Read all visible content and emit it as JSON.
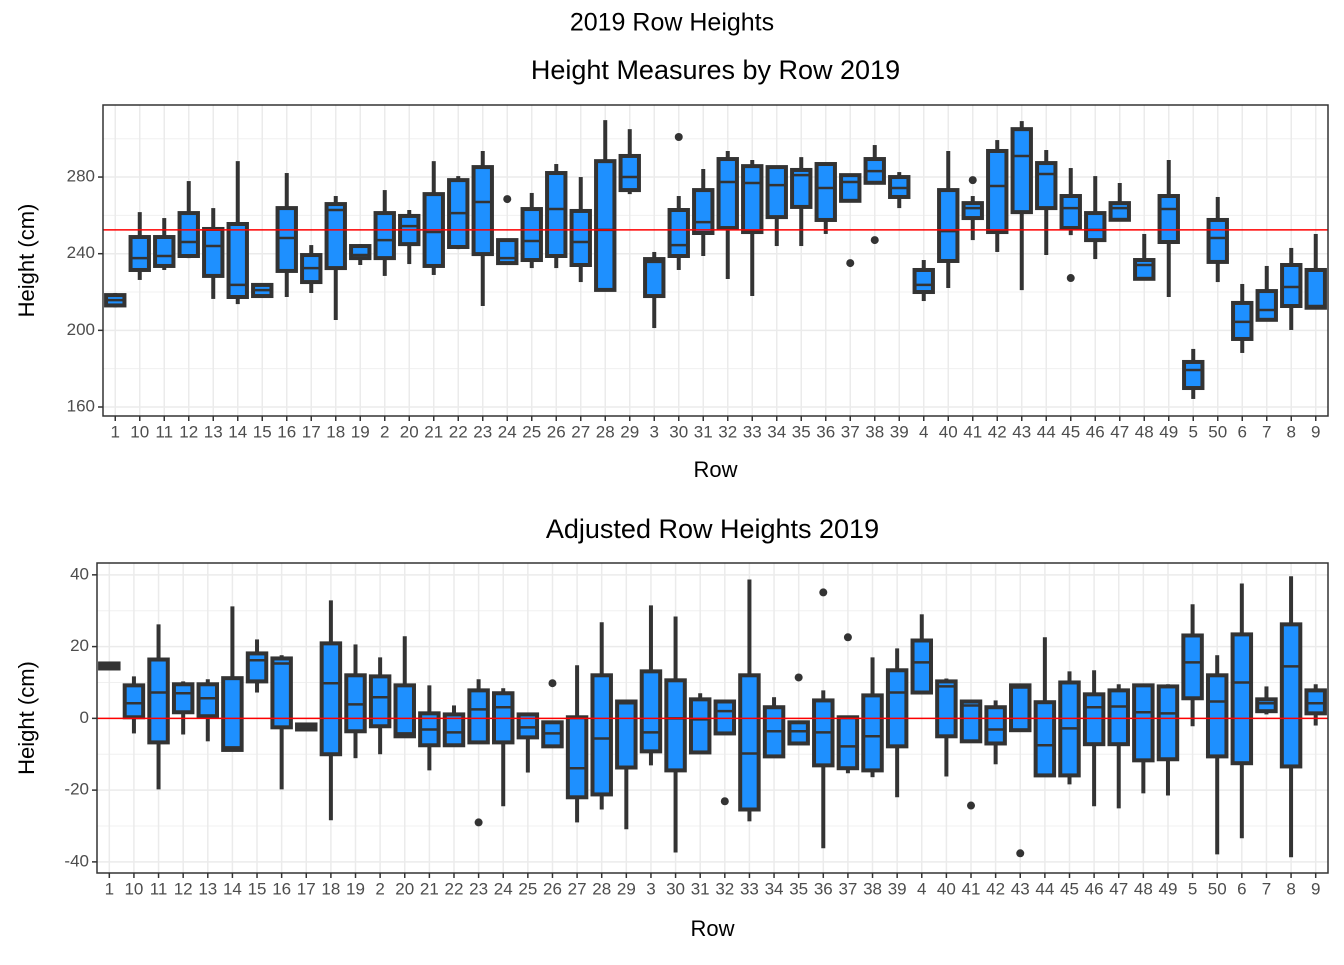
{
  "title": "2019 Row Heights",
  "chart_data": [
    {
      "type": "box",
      "title": "Height Measures by Row 2019",
      "xlabel": "Row",
      "ylabel": "Height (cm)",
      "categories": [
        "1",
        "10",
        "11",
        "12",
        "13",
        "14",
        "15",
        "16",
        "17",
        "18",
        "19",
        "2",
        "20",
        "21",
        "22",
        "23",
        "24",
        "25",
        "26",
        "27",
        "28",
        "29",
        "3",
        "30",
        "31",
        "32",
        "33",
        "34",
        "35",
        "36",
        "37",
        "38",
        "39",
        "4",
        "40",
        "41",
        "42",
        "43",
        "44",
        "45",
        "46",
        "47",
        "48",
        "49",
        "5",
        "50",
        "6",
        "7",
        "8",
        "9"
      ],
      "color": "#1e90ff",
      "line_color": "#333333",
      "boxes": [
        [
          212,
          213,
          215.8,
          218.4,
          219.5
        ],
        [
          226.3,
          231.5,
          237.7,
          248.7,
          261.7
        ],
        [
          231.5,
          233.6,
          238.8,
          248.7,
          258.6
        ],
        [
          237.7,
          238.8,
          246.1,
          261.2,
          277.9
        ],
        [
          216.4,
          228.4,
          244,
          252.9,
          263.8
        ],
        [
          213.7,
          217.4,
          223.7,
          255.5,
          288.3
        ],
        [
          217.4,
          217.9,
          221,
          223.7,
          224.2
        ],
        [
          217.4,
          231,
          248.2,
          263.8,
          282.1
        ],
        [
          219.5,
          225.2,
          232.5,
          239.3,
          244.5
        ],
        [
          205.4,
          232.5,
          262.8,
          265.9,
          270.1
        ],
        [
          234.1,
          237.7,
          239.3,
          244,
          245
        ],
        [
          228.4,
          237.7,
          247.1,
          261.2,
          273.2
        ],
        [
          234.6,
          245,
          254.4,
          259.7,
          262.8
        ],
        [
          228.9,
          233.6,
          251.3,
          271.1,
          288.3
        ],
        [
          242.4,
          243.5,
          261.2,
          278.4,
          280.5
        ],
        [
          212.7,
          239.8,
          267,
          285.2,
          293.6
        ],
        [
          235,
          235.1,
          237.7,
          247.1,
          247.2
        ],
        [
          232.5,
          236.7,
          246.6,
          263.3,
          271.7
        ],
        [
          232.5,
          238.8,
          263.3,
          282.1,
          286.8
        ],
        [
          225.2,
          234.1,
          246.1,
          262.3,
          280
        ],
        [
          221,
          221.1,
          252.4,
          288.3,
          309.7
        ],
        [
          271.1,
          273.2,
          280,
          291,
          305
        ],
        [
          201.2,
          217.9,
          235.7,
          237.2,
          240.9
        ],
        [
          231.5,
          238.8,
          244.5,
          262.8,
          270.1
        ],
        [
          238.8,
          250.8,
          256.5,
          273.2,
          284.2
        ],
        [
          226.8,
          253.4,
          277.4,
          289.4,
          293.6
        ],
        [
          217.9,
          251.3,
          276.9,
          285.7,
          288.9
        ],
        [
          244,
          259.1,
          275.8,
          285.2,
          285.7
        ],
        [
          244,
          264.4,
          281,
          283.7,
          290.4
        ],
        [
          250.3,
          257.6,
          274.3,
          286.8,
          287
        ],
        [
          267.5,
          267.6,
          277.4,
          281,
          281.1
        ],
        [
          276.9,
          277,
          283.1,
          289.4,
          296.7
        ],
        [
          263.8,
          269.6,
          274.3,
          280,
          282.6
        ],
        [
          215.3,
          220,
          223.7,
          231.5,
          236.7
        ],
        [
          222.1,
          236.2,
          251.8,
          273.2,
          293.6
        ],
        [
          247.1,
          258.6,
          263.8,
          266.4,
          270.1
        ],
        [
          240.9,
          251.3,
          275.3,
          293.6,
          299.3
        ],
        [
          221,
          261.7,
          291,
          305,
          309.2
        ],
        [
          239.3,
          263.8,
          281.6,
          287.3,
          294.1
        ],
        [
          249.7,
          253.4,
          263.8,
          270.1,
          284.7
        ],
        [
          237.2,
          247.1,
          252.4,
          261.2,
          280.5
        ],
        [
          257.6,
          257.7,
          263.8,
          266.4,
          276.9
        ],
        [
          226.8,
          226.9,
          234.1,
          236.7,
          250.3
        ],
        [
          217.4,
          246.1,
          263.3,
          270.1,
          288.9
        ],
        [
          164.2,
          169.9,
          179.3,
          183.5,
          190.3
        ],
        [
          225.2,
          235.7,
          248.2,
          257.6,
          269.6
        ],
        [
          188.2,
          195.5,
          204.4,
          214.3,
          224.2
        ],
        [
          205.4,
          205.5,
          210.6,
          220.5,
          233.6
        ],
        [
          200.2,
          212.7,
          222.6,
          234.1,
          243
        ],
        [
          211.7,
          211.8,
          212.7,
          231.5,
          250.3
        ]
      ],
      "outliers": [
        [],
        [],
        [],
        [],
        [],
        [],
        [],
        [],
        [],
        [],
        [],
        [],
        [],
        [],
        [],
        [],
        [
          268.5
        ],
        [],
        [],
        [],
        [],
        [],
        [],
        [
          300.9
        ],
        [],
        [],
        [],
        [],
        [],
        [],
        [
          235.1
        ],
        [
          247.1
        ],
        [],
        [],
        [],
        [
          278.4
        ],
        [],
        [],
        [],
        [
          227.3
        ],
        [],
        [],
        [],
        [],
        [],
        [],
        [],
        [],
        [],
        []
      ],
      "hline": 252.4,
      "hline_color": "#ff0000",
      "ylim": [
        155.3,
        317.6
      ],
      "yticks": [
        160,
        200,
        240,
        280
      ],
      "minor_yticks": [
        180,
        220,
        260,
        300
      ],
      "grid": true
    },
    {
      "type": "box",
      "title": "Adjusted Row Heights 2019",
      "xlabel": "Row",
      "ylabel": "Height (cm)",
      "categories": [
        "1",
        "10",
        "11",
        "12",
        "13",
        "14",
        "15",
        "16",
        "17",
        "18",
        "19",
        "2",
        "20",
        "21",
        "22",
        "23",
        "24",
        "25",
        "26",
        "27",
        "28",
        "29",
        "3",
        "30",
        "31",
        "32",
        "33",
        "34",
        "35",
        "36",
        "37",
        "38",
        "39",
        "4",
        "40",
        "41",
        "42",
        "43",
        "44",
        "45",
        "46",
        "47",
        "48",
        "49",
        "5",
        "50",
        "6",
        "7",
        "8",
        "9"
      ],
      "color": "#1e90ff",
      "line_color": "#333333",
      "boxes": [
        [
          13.8,
          13.9,
          14.8,
          15.3,
          15.4
        ],
        [
          -4.2,
          0.3,
          4.2,
          9.2,
          11.7
        ],
        [
          -19.8,
          -6.7,
          7.2,
          16.4,
          26.2
        ],
        [
          -4.5,
          1.7,
          7,
          9.5,
          10.3
        ],
        [
          -6.4,
          0.6,
          5.6,
          9.5,
          10.9
        ],
        [
          -8.9,
          -8.8,
          -8.1,
          11.2,
          31.2
        ],
        [
          7.2,
          10.3,
          16.2,
          18.1,
          22
        ],
        [
          -19.8,
          -2.5,
          15.3,
          16.7,
          17.6
        ],
        [
          -3.2,
          -3.1,
          -2.5,
          -1.7,
          -1.6
        ],
        [
          -28.4,
          -10,
          9.8,
          20.9,
          32.9
        ],
        [
          -11.1,
          -3.6,
          3.9,
          12,
          20.6
        ],
        [
          -10,
          -2.2,
          5.9,
          11.7,
          17
        ],
        [
          -5.1,
          -5,
          -4.2,
          9.2,
          22.9
        ],
        [
          -14.5,
          -7.5,
          -3.1,
          1.4,
          9.2
        ],
        [
          -7.6,
          -7.5,
          -3.9,
          1.1,
          3.6
        ],
        [
          -6.8,
          -6.7,
          2.5,
          7.8,
          10.9
        ],
        [
          -24.5,
          -6.7,
          3.1,
          7,
          8.4
        ],
        [
          -15.1,
          -5.3,
          -2.5,
          1.1,
          1.2
        ],
        [
          -7.9,
          -7.8,
          -4.2,
          -1.1,
          -1
        ],
        [
          -29,
          -22,
          -13.9,
          0.3,
          14.8
        ],
        [
          -25.4,
          -21.2,
          -5.6,
          12,
          26.8
        ],
        [
          -30.9,
          -13.7,
          4.2,
          4.7,
          5
        ],
        [
          -13.1,
          -9.2,
          -3.9,
          13.1,
          31.5
        ],
        [
          -37.4,
          -14.5,
          0,
          10.6,
          28.4
        ],
        [
          -9.6,
          -9.5,
          -0.3,
          5.3,
          7
        ],
        [
          -4.3,
          -4.2,
          2,
          4.7,
          4.8
        ],
        [
          -28.7,
          -25.4,
          -9.8,
          12,
          38.7
        ],
        [
          -10.7,
          -10.6,
          -3.6,
          3.1,
          5.9
        ],
        [
          -7.1,
          -7,
          -3.6,
          -1.1,
          -1
        ],
        [
          -36.2,
          -13.1,
          -3.9,
          5,
          7.8
        ],
        [
          -15.3,
          -13.9,
          -7.8,
          0.3,
          0.4
        ],
        [
          -16.4,
          -14.5,
          -5,
          6.4,
          17
        ],
        [
          -22,
          -7.8,
          7.2,
          13.4,
          19.5
        ],
        [
          7.1,
          7.2,
          15.6,
          21.7,
          29
        ],
        [
          -16.2,
          -5,
          8.9,
          10.3,
          11.1
        ],
        [
          -6.5,
          -6.4,
          3.6,
          4.7,
          5
        ],
        [
          -12.8,
          -7,
          -3.1,
          3.1,
          5
        ],
        [
          -3.4,
          -3.3,
          8.6,
          9.2,
          9.5
        ],
        [
          -16,
          -15.9,
          -7.5,
          4.5,
          22.6
        ],
        [
          -18.4,
          -15.9,
          -2.8,
          10,
          13.1
        ],
        [
          -24.5,
          -7.2,
          3.1,
          6.7,
          13.4
        ],
        [
          -25.1,
          -7.2,
          3.3,
          7.8,
          9.5
        ],
        [
          -20.9,
          -11.7,
          1.7,
          9.2,
          9.3
        ],
        [
          -21.5,
          -11.4,
          1.4,
          8.9,
          9.5
        ],
        [
          -2.2,
          5.6,
          15.6,
          23.1,
          31.8
        ],
        [
          -37.9,
          -10.6,
          4.7,
          12,
          17.6
        ],
        [
          -33.4,
          -12.5,
          10,
          23.4,
          37.6
        ],
        [
          1.1,
          2,
          4.2,
          5.3,
          8.9
        ],
        [
          -38.7,
          -13.4,
          14.5,
          26.2,
          39.6
        ],
        [
          -2,
          1.4,
          4.2,
          7.8,
          9.5
        ]
      ],
      "outliers": [
        [],
        [],
        [],
        [],
        [],
        [],
        [],
        [],
        [],
        [],
        [],
        [],
        [],
        [],
        [],
        [
          -29
        ],
        [],
        [],
        [
          9.8
        ],
        [],
        [],
        [],
        [],
        [],
        [],
        [
          -23.1
        ],
        [],
        [],
        [
          11.4
        ],
        [
          35.1
        ],
        [
          22.6
        ],
        [],
        [],
        [],
        [],
        [
          -24.3
        ],
        [],
        [
          -37.6
        ],
        [],
        [],
        [],
        [],
        [],
        [],
        [],
        [],
        [],
        [],
        [],
        []
      ],
      "hline": 0,
      "hline_color": "#ff0000",
      "ylim": [
        -43.1,
        43.3
      ],
      "yticks": [
        -40,
        -20,
        0,
        20,
        40
      ],
      "minor_yticks": [
        -30,
        -10,
        10,
        30
      ],
      "grid": true
    }
  ]
}
